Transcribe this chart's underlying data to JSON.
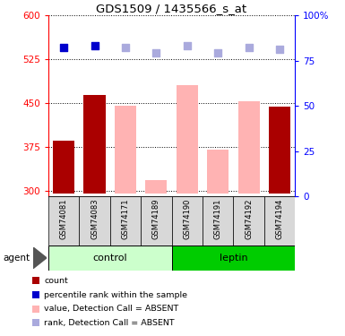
{
  "title": "GDS1509 / 1435566_s_at",
  "samples": [
    "GSM74081",
    "GSM74083",
    "GSM74171",
    "GSM74189",
    "GSM74190",
    "GSM74191",
    "GSM74192",
    "GSM74194"
  ],
  "ylim_left": [
    290,
    600
  ],
  "ylim_right": [
    0,
    100
  ],
  "yticks_left": [
    300,
    375,
    450,
    525,
    600
  ],
  "yticks_right": [
    0,
    25,
    50,
    75,
    100
  ],
  "bar_values": {
    "GSM74081": 385,
    "GSM74083": 463,
    "GSM74194": 443
  },
  "bar_absent_values": {
    "GSM74171": 445,
    "GSM74189": 318,
    "GSM74190": 480,
    "GSM74191": 370,
    "GSM74192": 453
  },
  "percentile_present": {
    "GSM74081": 82,
    "GSM74083": 83
  },
  "percentile_absent": {
    "GSM74171": 82,
    "GSM74189": 79,
    "GSM74190": 83,
    "GSM74191": 79,
    "GSM74192": 82,
    "GSM74194": 81
  },
  "bar_color": "#aa0000",
  "bar_absent_color": "#ffb3b3",
  "dot_present_color": "#0000cc",
  "dot_absent_color": "#aaaadd",
  "ybase": 295,
  "control_color": "#ccffcc",
  "leptin_color": "#00cc00",
  "sample_box_color": "#d8d8d8",
  "legend_items": [
    {
      "label": "count",
      "color": "#aa0000"
    },
    {
      "label": "percentile rank within the sample",
      "color": "#0000cc"
    },
    {
      "label": "value, Detection Call = ABSENT",
      "color": "#ffb3b3"
    },
    {
      "label": "rank, Detection Call = ABSENT",
      "color": "#aaaadd"
    }
  ]
}
